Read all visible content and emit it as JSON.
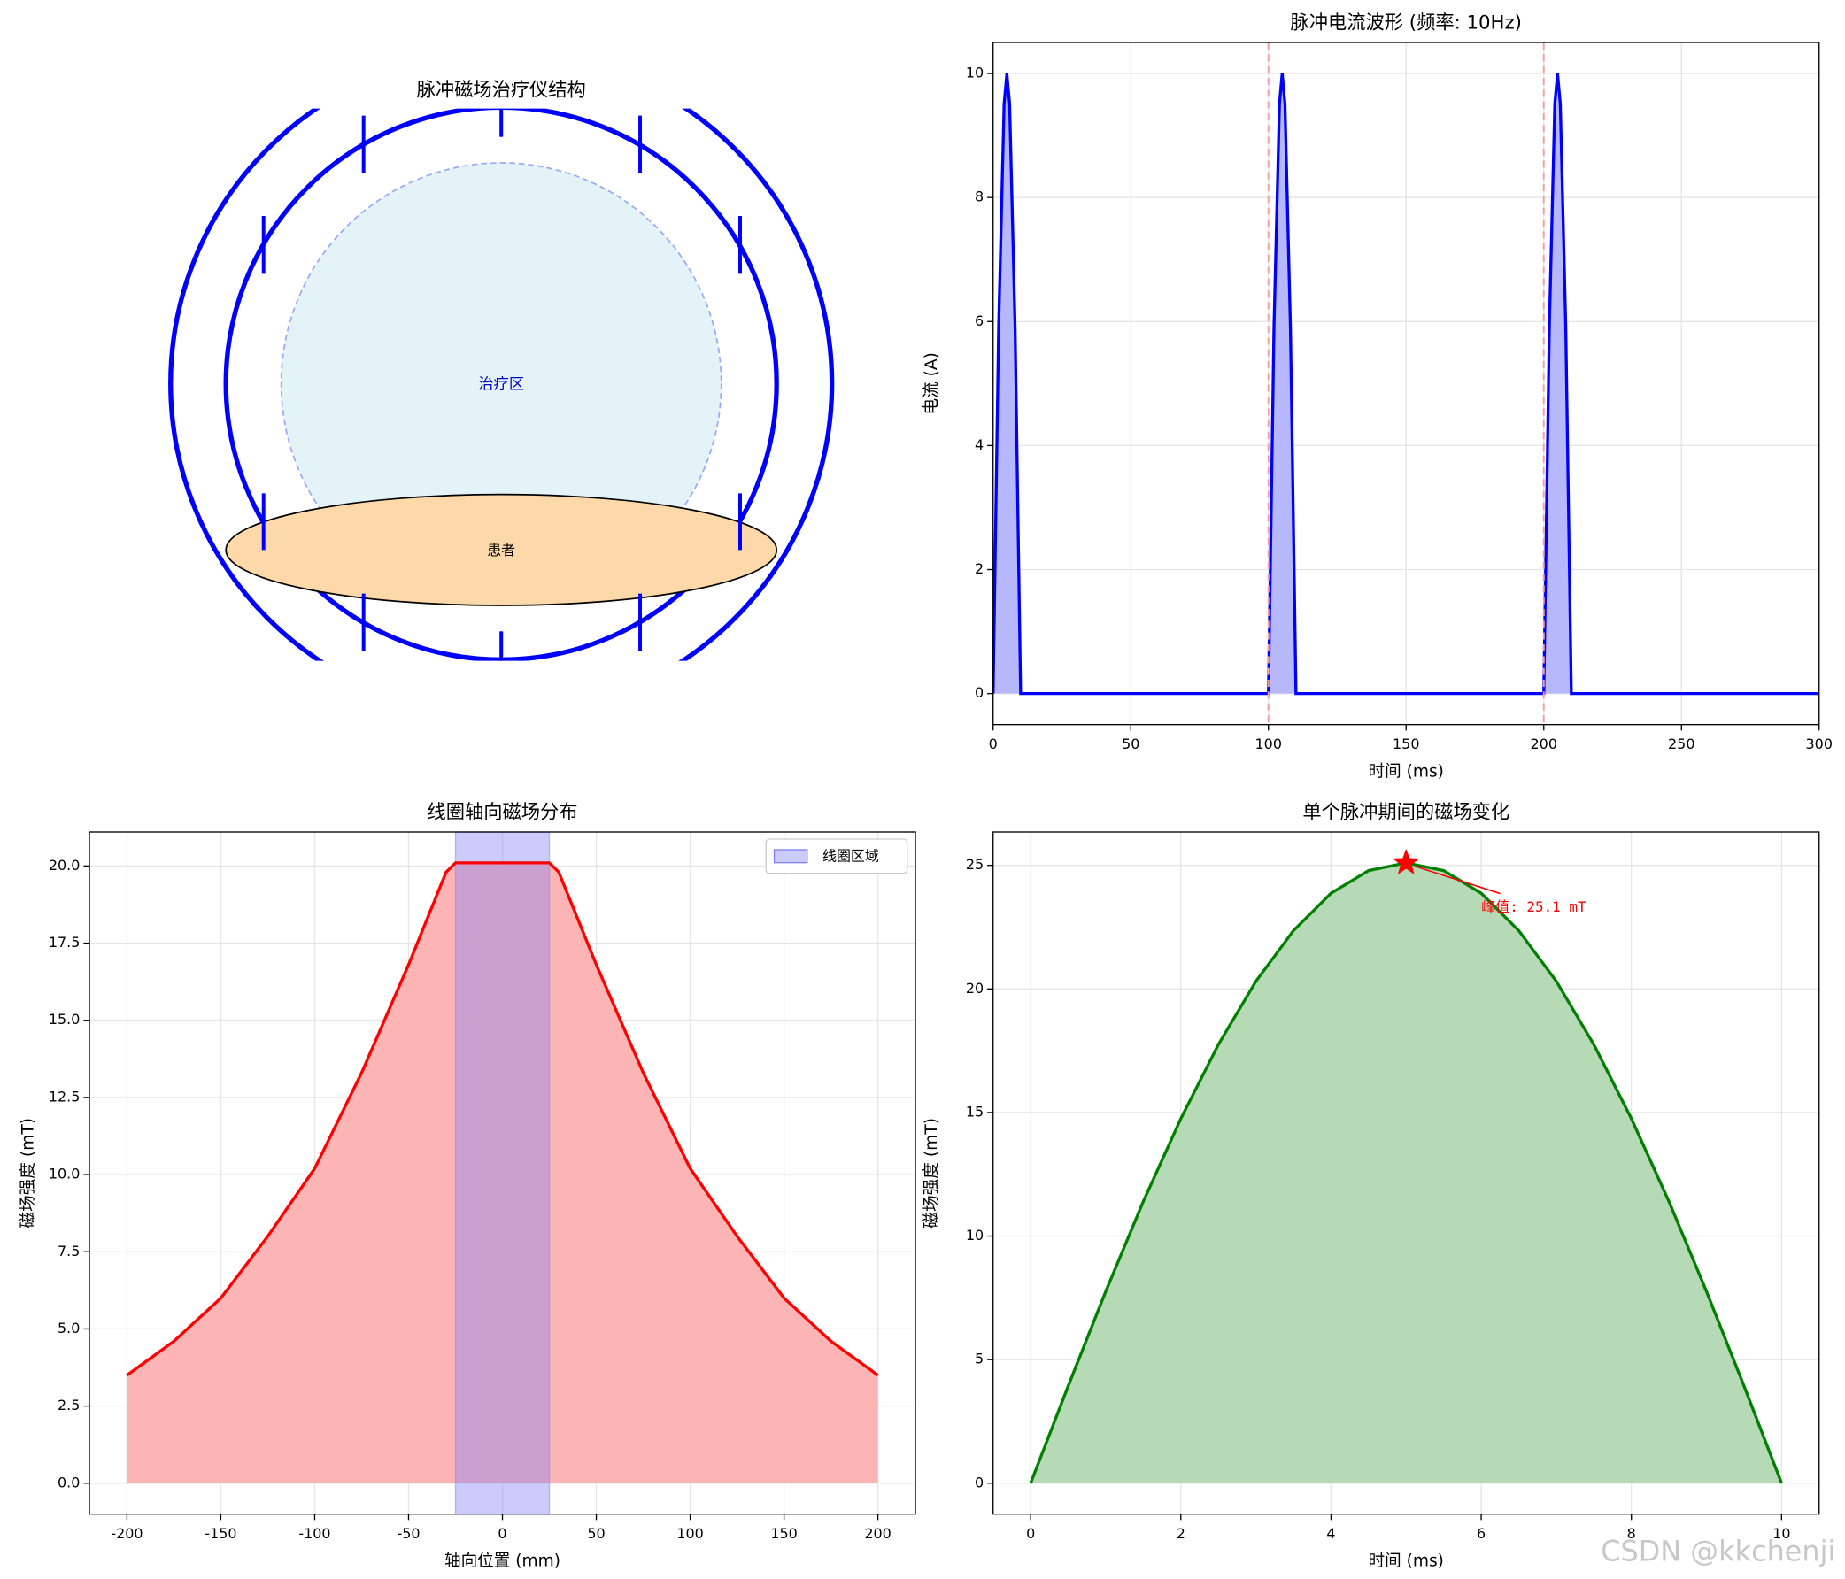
{
  "chart_data": [
    {
      "type": "diagram",
      "title": "脉冲磁场治疗仪结构",
      "zone_label": "治疗区",
      "patient_label": "患者"
    },
    {
      "type": "line",
      "title": "脉冲电流波形 (频率: 10Hz)",
      "xlabel": "时间 (ms)",
      "ylabel": "电流 (A)",
      "x": [
        0,
        2,
        4,
        5,
        6,
        8,
        10,
        100,
        102,
        104,
        105,
        106,
        108,
        110,
        200,
        202,
        204,
        205,
        206,
        208,
        210,
        300
      ],
      "series": [
        {
          "color": "#0000ff",
          "fill": "#b3b3fb",
          "values": [
            0,
            5.88,
            9.51,
            10,
            9.51,
            5.88,
            0,
            0,
            5.88,
            9.51,
            10,
            9.51,
            5.88,
            0,
            0,
            5.88,
            9.51,
            10,
            9.51,
            5.88,
            0,
            0
          ]
        }
      ],
      "vlines": [
        100,
        200
      ],
      "vline_color": "#f4a0a0",
      "xlim": [
        0,
        300
      ],
      "ylim": [
        -0.5,
        10.5
      ],
      "xticks": [
        0,
        50,
        100,
        150,
        200,
        250,
        300
      ],
      "yticks": [
        0,
        2,
        4,
        6,
        8,
        10
      ],
      "grid": true
    },
    {
      "type": "line",
      "title": "线圈轴向磁场分布",
      "xlabel": "轴向位置 (mm)",
      "ylabel": "磁场强度 (mT)",
      "x": [
        -200,
        -175,
        -150,
        -125,
        -100,
        -75,
        -50,
        -40,
        -30,
        -25,
        0,
        25,
        30,
        40,
        50,
        75,
        100,
        125,
        150,
        175,
        200
      ],
      "series": [
        {
          "color": "#ff0000",
          "fill": "#fdb0b1",
          "values": [
            3.5,
            4.6,
            6.0,
            8.0,
            10.2,
            13.3,
            16.8,
            18.3,
            19.8,
            20.1,
            20.1,
            20.1,
            19.8,
            18.3,
            16.8,
            13.3,
            10.2,
            8.0,
            6.0,
            4.6,
            3.5
          ]
        }
      ],
      "band": {
        "name": "线圈区域",
        "range": [
          -25,
          25
        ],
        "color": "#8080f8"
      },
      "legend": "upper right",
      "xlim": [
        -220,
        220
      ],
      "ylim": [
        -1.0,
        21.1
      ],
      "xticks": [
        -200,
        -150,
        -100,
        -50,
        0,
        50,
        100,
        150,
        200
      ],
      "yticks": [
        {
          "value": 0,
          "label": "0.0"
        },
        {
          "value": 2.5,
          "label": "2.5"
        },
        {
          "value": 5,
          "label": "5.0"
        },
        {
          "value": 7.5,
          "label": "7.5"
        },
        {
          "value": 10,
          "label": "10.0"
        },
        {
          "value": 12.5,
          "label": "12.5"
        },
        {
          "value": 15,
          "label": "15.0"
        },
        {
          "value": 17.5,
          "label": "17.5"
        },
        {
          "value": 20,
          "label": "20.0"
        }
      ],
      "grid": true
    },
    {
      "type": "line",
      "title": "单个脉冲期间的磁场变化",
      "xlabel": "时间 (ms)",
      "ylabel": "磁场强度 (mT)",
      "x": [
        0,
        0.5,
        1,
        1.5,
        2,
        2.5,
        3,
        3.5,
        4,
        4.5,
        5,
        5.5,
        6,
        6.5,
        7,
        7.5,
        8,
        8.5,
        9,
        9.5,
        10
      ],
      "series": [
        {
          "color": "#008000",
          "fill": "#b2d8b2",
          "values": [
            0,
            3.93,
            7.76,
            11.4,
            14.75,
            17.75,
            20.31,
            22.36,
            23.87,
            24.79,
            25.1,
            24.79,
            23.87,
            22.36,
            20.31,
            17.75,
            14.75,
            11.4,
            7.76,
            3.93,
            0
          ]
        }
      ],
      "peak": {
        "x": 5,
        "y": 25.1,
        "label": "峰值: 25.1 mT",
        "color": "#ff0000"
      },
      "xlim": [
        -0.5,
        10.5
      ],
      "ylim": [
        -1.25,
        26.35
      ],
      "xticks": [
        0,
        2,
        4,
        6,
        8,
        10
      ],
      "yticks": [
        0,
        5,
        10,
        15,
        20,
        25
      ],
      "grid": true
    }
  ],
  "watermark": "CSDN @kkchenji"
}
